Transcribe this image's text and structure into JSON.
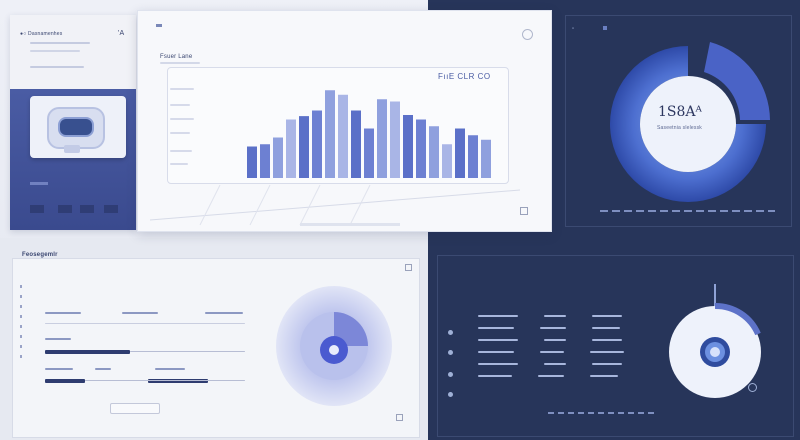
{
  "panel_a": {
    "header_label": "●○ Dasnamenhes",
    "header_mark": "'A"
  },
  "chart_card": {
    "title": "Fsuer Lane",
    "header_value": "FııE CLR CO",
    "bar_values": [
      28,
      30,
      36,
      52,
      55,
      60,
      78,
      74,
      60,
      44,
      70,
      68,
      56,
      52,
      46,
      30,
      44,
      38,
      34
    ],
    "bar_colors": [
      "#5b70c8",
      "#6d80d2",
      "#8fa0de",
      "#a9b5e6"
    ]
  },
  "gauge_top": {
    "value_label": "1S8Aᴬ",
    "sub_label": "Saseetnia slelessk"
  },
  "bottom_left": {
    "title": "Feosegemlr"
  },
  "colors": {
    "accent": "#4a5ca4",
    "navy": "#27355a",
    "light_blue": "#8fb2ec"
  }
}
